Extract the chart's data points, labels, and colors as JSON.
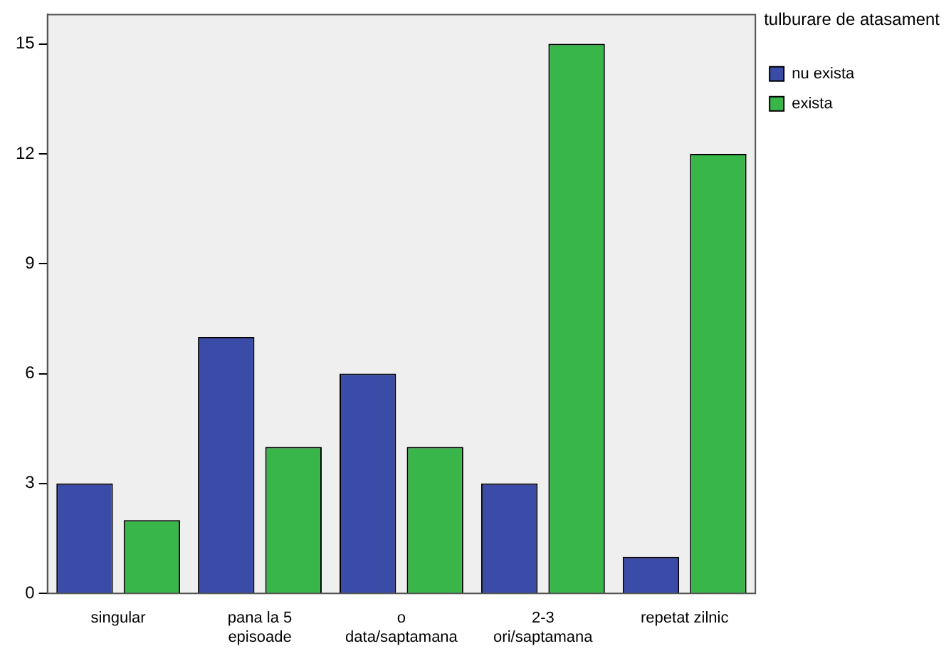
{
  "chart_data": {
    "type": "bar",
    "legend_title": "tulburare de atasament",
    "categories": [
      "singular",
      "pana la 5 episoade",
      "o data/saptamana",
      "2-3 ori/saptamana",
      "repetat zilnic"
    ],
    "series": [
      {
        "name": "nu exista",
        "color": "#3b4ca8",
        "values": [
          3,
          7,
          6,
          3,
          1
        ]
      },
      {
        "name": "exista",
        "color": "#39b64a",
        "values": [
          2,
          4,
          4,
          15,
          12
        ]
      }
    ],
    "ylim": [
      0,
      15.8
    ],
    "yticks": [
      0,
      3,
      6,
      9,
      12,
      15
    ],
    "grid": false,
    "legend": "top right"
  }
}
